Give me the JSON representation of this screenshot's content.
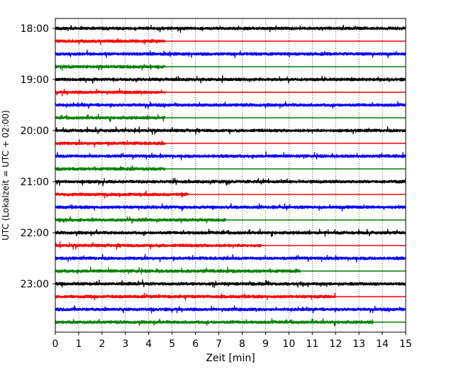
{
  "chart_data": {
    "type": "line",
    "title": "",
    "xlabel": "Zeit  [min]",
    "ylabel": "UTC (Lokalzeit = UTC + 02:00)",
    "xlim": [
      0,
      15
    ],
    "x_ticks": [
      0,
      1,
      2,
      3,
      4,
      5,
      6,
      7,
      8,
      9,
      10,
      11,
      12,
      13,
      14,
      15
    ],
    "x_tick_labels": [
      "0",
      "1",
      "2",
      "3",
      "4",
      "5",
      "6",
      "7",
      "8",
      "9",
      "10",
      "11",
      "12",
      "13",
      "14",
      "15"
    ],
    "y_tick_labels": [
      "18:00",
      "19:00",
      "20:00",
      "21:00",
      "22:00",
      "23:00"
    ],
    "y_tick_trace_index": [
      0,
      4,
      8,
      12,
      16,
      20
    ],
    "grid": "vertical dotted lines at every minute",
    "trace_minutes": 15,
    "trace_colors": [
      "#000000",
      "#ff0000",
      "#0000ff",
      "#008000"
    ],
    "traces": [
      {
        "label": "18:00",
        "color": "#000000",
        "active_until": 15
      },
      {
        "label": "18:15",
        "color": "#ff0000",
        "active_until": 4.7
      },
      {
        "label": "18:30",
        "color": "#0000ff",
        "active_until": 15
      },
      {
        "label": "18:45",
        "color": "#008000",
        "active_until": 4.7
      },
      {
        "label": "19:00",
        "color": "#000000",
        "active_until": 15
      },
      {
        "label": "19:15",
        "color": "#ff0000",
        "active_until": 4.7
      },
      {
        "label": "19:30",
        "color": "#0000ff",
        "active_until": 15
      },
      {
        "label": "19:45",
        "color": "#008000",
        "active_until": 4.7
      },
      {
        "label": "20:00",
        "color": "#000000",
        "active_until": 15
      },
      {
        "label": "20:15",
        "color": "#ff0000",
        "active_until": 4.7
      },
      {
        "label": "20:30",
        "color": "#0000ff",
        "active_until": 15
      },
      {
        "label": "20:45",
        "color": "#008000",
        "active_until": 4.7
      },
      {
        "label": "21:00",
        "color": "#000000",
        "active_until": 15
      },
      {
        "label": "21:15",
        "color": "#ff0000",
        "active_until": 5.7
      },
      {
        "label": "21:30",
        "color": "#0000ff",
        "active_until": 15
      },
      {
        "label": "21:45",
        "color": "#008000",
        "active_until": 7.3
      },
      {
        "label": "22:00",
        "color": "#000000",
        "active_until": 15
      },
      {
        "label": "22:15",
        "color": "#ff0000",
        "active_until": 8.8
      },
      {
        "label": "22:30",
        "color": "#0000ff",
        "active_until": 15
      },
      {
        "label": "22:45",
        "color": "#008000",
        "active_until": 10.5
      },
      {
        "label": "23:00",
        "color": "#000000",
        "active_until": 15
      },
      {
        "label": "23:15",
        "color": "#ff0000",
        "active_until": 12
      },
      {
        "label": "23:30",
        "color": "#0000ff",
        "active_until": 15
      },
      {
        "label": "23:45",
        "color": "#008000",
        "active_until": 13.6
      }
    ]
  }
}
